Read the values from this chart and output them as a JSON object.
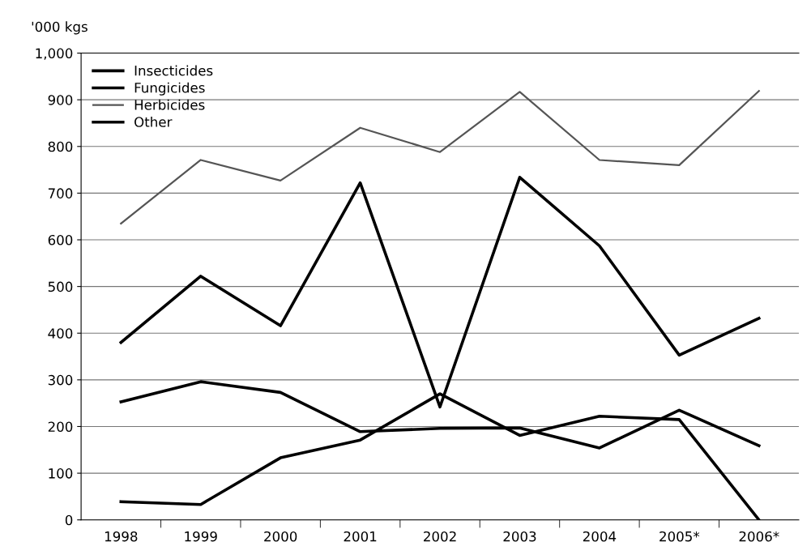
{
  "chart_data": {
    "type": "line",
    "ylabel": "'000 kgs",
    "categories": [
      "1998",
      "1999",
      "2000",
      "2001",
      "2002",
      "2003",
      "2004",
      "2005*",
      "2006*"
    ],
    "series": [
      {
        "name": "Insecticides",
        "color": "#000000",
        "values": [
          253,
          296,
          273,
          189,
          196,
          197,
          154,
          235,
          159
        ]
      },
      {
        "name": "Fungicides",
        "color": "#000000",
        "values": [
          380,
          522,
          416,
          722,
          242,
          734,
          587,
          353,
          432
        ]
      },
      {
        "name": "Herbicides",
        "color": "#555555",
        "values": [
          635,
          771,
          727,
          840,
          788,
          917,
          771,
          760,
          919
        ]
      },
      {
        "name": "Other",
        "color": "#000000",
        "values": [
          39,
          33,
          133,
          171,
          270,
          181,
          222,
          215,
          0
        ]
      }
    ],
    "ylim": [
      0,
      1000
    ],
    "yticks": [
      0,
      100,
      200,
      300,
      400,
      500,
      600,
      700,
      800,
      900,
      {
        "value": 1000,
        "label": "1,000"
      }
    ],
    "grid": "y",
    "legend": "top left",
    "marker": "none",
    "line_style": "solid"
  }
}
